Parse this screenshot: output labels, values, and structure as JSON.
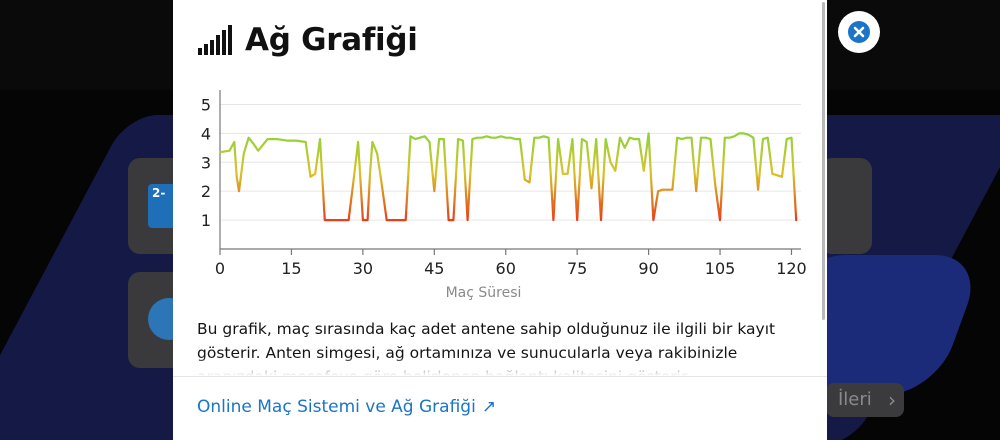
{
  "background": {
    "next_button_label": "İleri",
    "card1_icon_text": "2-"
  },
  "modal": {
    "title": "Ağ Grafiği",
    "description": "Bu grafik, maç sırasında kaç adet antene sahip olduğunuz ile ilgili bir kayıt gösterir. Anten simgesi, ağ ortamınıza ve sunucularla veya rakibinizle aranızdaki mesafeye göre belirlenen bağlantı kalitesini gösterir.",
    "footer_link": "Online Maç Sistemi ve Ağ Grafiği",
    "footer_link_icon": "external-arrow-icon"
  },
  "colors": {
    "accent": "#1a74c8",
    "good": "#8ed23a",
    "bad": "#e8401b"
  },
  "chart_data": {
    "type": "line",
    "title": "",
    "xlabel": "Maç Süresi",
    "ylabel": "",
    "xlim": [
      0,
      122
    ],
    "ylim": [
      0,
      5.5
    ],
    "xticks": [
      0,
      15,
      30,
      45,
      60,
      75,
      90,
      105,
      120
    ],
    "yticks": [
      1,
      2,
      3,
      4,
      5
    ],
    "grid": true,
    "x": [
      0,
      2,
      3,
      3.5,
      4,
      5,
      6,
      7,
      8,
      9,
      10,
      12,
      14,
      16,
      18,
      19,
      20,
      21,
      22,
      24,
      26,
      27,
      28,
      29,
      30,
      31,
      31.5,
      32,
      33,
      34,
      35,
      36,
      37,
      38,
      39,
      40,
      41,
      42,
      43,
      44,
      45,
      46,
      47,
      48,
      49,
      50,
      51,
      52,
      53,
      54,
      55,
      56,
      57,
      58,
      59,
      60,
      61,
      62,
      63,
      64,
      65,
      66,
      67,
      68,
      69,
      70,
      71,
      72,
      73,
      74,
      75,
      76,
      77,
      78,
      79,
      80,
      81,
      82,
      83,
      84,
      85,
      86,
      87,
      88,
      89,
      90,
      91,
      92,
      93,
      94,
      95,
      96,
      97,
      98,
      99,
      100,
      101,
      102,
      103,
      104,
      105,
      106,
      107,
      108,
      109,
      110,
      111,
      112,
      113,
      114,
      115,
      116,
      117,
      118,
      119,
      120,
      121
    ],
    "values": [
      3.35,
      3.4,
      3.7,
      2.5,
      2.0,
      3.3,
      3.85,
      3.65,
      3.4,
      3.6,
      3.8,
      3.8,
      3.75,
      3.75,
      3.7,
      2.5,
      2.6,
      3.8,
      1.0,
      1.0,
      1.0,
      1.0,
      2.3,
      3.7,
      1.0,
      1.0,
      2.6,
      3.7,
      3.3,
      2.2,
      1.0,
      1.0,
      1.0,
      1.0,
      1.0,
      3.9,
      3.8,
      3.85,
      3.9,
      3.7,
      2.0,
      3.8,
      3.8,
      1.0,
      1.0,
      3.8,
      3.75,
      1.0,
      3.8,
      3.85,
      3.85,
      3.9,
      3.85,
      3.85,
      3.9,
      3.85,
      3.85,
      3.8,
      3.8,
      2.4,
      2.3,
      3.85,
      3.85,
      3.9,
      3.85,
      1.0,
      3.8,
      2.6,
      2.6,
      3.8,
      1.0,
      3.8,
      3.7,
      2.1,
      3.8,
      1.0,
      3.8,
      3.0,
      2.7,
      3.85,
      3.5,
      3.85,
      3.8,
      3.8,
      2.7,
      4.0,
      1.0,
      2.0,
      2.05,
      2.05,
      2.05,
      3.85,
      3.8,
      3.85,
      3.85,
      2.0,
      3.85,
      3.85,
      3.8,
      2.2,
      1.0,
      3.85,
      3.85,
      3.9,
      4.0,
      4.0,
      3.95,
      3.85,
      2.05,
      3.8,
      3.85,
      2.6,
      2.55,
      2.5,
      3.8,
      3.85,
      1.0
    ]
  }
}
